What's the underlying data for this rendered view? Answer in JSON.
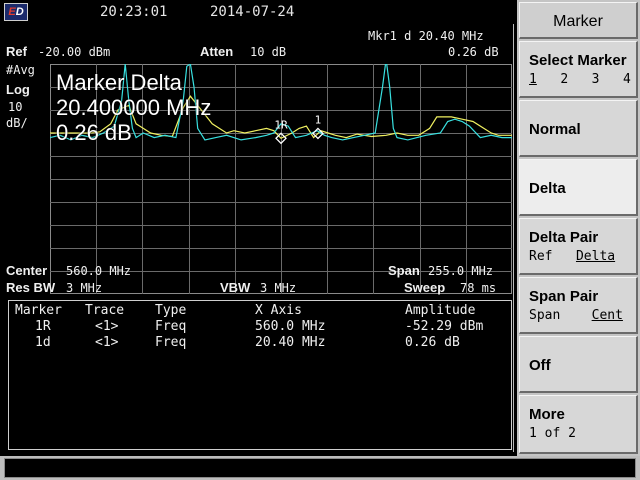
{
  "topbar": {
    "logo_letter_e": "E",
    "logo_letter_d": "D",
    "time": "20:23:01",
    "date": "2014-07-24"
  },
  "header": {
    "marker_readout": "Mkr1 d 20.40 MHz",
    "marker_amplitude": "0.26 dB",
    "ref_label": "Ref",
    "ref_value": "-20.00 dBm",
    "atten_label": "Atten",
    "atten_value": "10 dB",
    "detector": "#Avg",
    "scale_type": "Log",
    "scale_value": "10",
    "scale_unit": "dB/"
  },
  "overlay": {
    "title": "Marker Delta",
    "frequency": "20.400000 MHz",
    "amplitude": "0.26 dB"
  },
  "markers": [
    {
      "label": "1R",
      "x_mhz": 560.0
    },
    {
      "label": "1",
      "x_mhz": 580.4
    }
  ],
  "footer": {
    "center_label": "Center",
    "center_value": "560.0 MHz",
    "span_label": "Span",
    "span_value": "255.0 MHz",
    "rbw_label": "Res BW",
    "rbw_value": "3 MHz",
    "vbw_label": "VBW",
    "vbw_value": "3 MHz",
    "sweep_label": "Sweep",
    "sweep_value": "78 ms"
  },
  "table": {
    "headers": [
      "Marker",
      "Trace",
      "Type",
      "X Axis",
      "Amplitude"
    ],
    "rows": [
      [
        "1R",
        "<1>",
        "Freq",
        "560.0 MHz",
        "-52.29 dBm"
      ],
      [
        "1d",
        "<1>",
        "Freq",
        "20.40 MHz",
        "0.26 dB"
      ]
    ]
  },
  "softkeys": {
    "title": "Marker",
    "select_marker": {
      "label": "Select Marker",
      "options": [
        "1",
        "2",
        "3",
        "4"
      ]
    },
    "normal": "Normal",
    "delta": "Delta",
    "delta_pair": {
      "label": "Delta Pair",
      "left": "Ref",
      "right": "Delta"
    },
    "span_pair": {
      "label": "Span Pair",
      "left": "Span",
      "right": "Cent"
    },
    "off": "Off",
    "more": {
      "label": "More",
      "page": "1 of 2"
    }
  },
  "chart_data": {
    "type": "line",
    "x_range_mhz": [
      432.5,
      687.5
    ],
    "y_range_dbm": [
      -20,
      -120
    ],
    "grid": true,
    "series": [
      {
        "color": "#f0f060",
        "x": [
          432.5,
          445,
          455,
          460,
          466,
          470,
          476,
          480,
          488,
          494,
          500,
          506,
          510,
          516,
          522,
          530,
          534,
          540,
          546,
          552,
          556,
          560,
          566,
          570,
          574,
          578,
          582,
          586,
          590,
          596,
          602,
          610,
          618,
          624,
          630,
          636,
          642,
          646,
          650,
          654,
          660,
          666,
          672,
          676,
          680,
          687.5
        ],
        "y": [
          -50,
          -50,
          -50,
          -49.5,
          -46,
          -40,
          -38,
          -46,
          -50,
          -51,
          -51.5,
          -39,
          -34,
          -40,
          -46,
          -50,
          -49,
          -50,
          -49,
          -48,
          -49,
          -52.3,
          -50,
          -48,
          -47,
          -52,
          -49,
          -50,
          -51,
          -52,
          -50.5,
          -51.5,
          -51,
          -50,
          -51,
          -51,
          -48,
          -43,
          -43,
          -43,
          -44,
          -45,
          -48,
          -50,
          -51,
          -51
        ]
      },
      {
        "color": "#38e0e0",
        "x": [
          432.5,
          438,
          444,
          450,
          456,
          462,
          468,
          472,
          474,
          476,
          478,
          480,
          484,
          490,
          496,
          502,
          506,
          508,
          510,
          512,
          514,
          518,
          524,
          530,
          538,
          546,
          552,
          556,
          560,
          564,
          568,
          574,
          580,
          584,
          588,
          594,
          600,
          606,
          612,
          616,
          618,
          620,
          622,
          624,
          630,
          640,
          648,
          652,
          656,
          660,
          664,
          670,
          676,
          682,
          687.5
        ],
        "y": [
          -52,
          -51,
          -53,
          -51,
          -52,
          -50,
          -47,
          -36,
          -20,
          -36,
          -48,
          -52,
          -50,
          -52,
          -51,
          -52,
          -36,
          -21,
          -20,
          -30,
          -48,
          -53,
          -52,
          -51,
          -53,
          -52,
          -51,
          -50,
          -46,
          -47,
          -52,
          -51,
          -49,
          -51,
          -52,
          -53,
          -52,
          -51,
          -50,
          -30,
          -18,
          -30,
          -48,
          -52,
          -53,
          -51,
          -50,
          -45,
          -44,
          -45,
          -47,
          -52,
          -51,
          -52,
          -52
        ]
      }
    ]
  }
}
